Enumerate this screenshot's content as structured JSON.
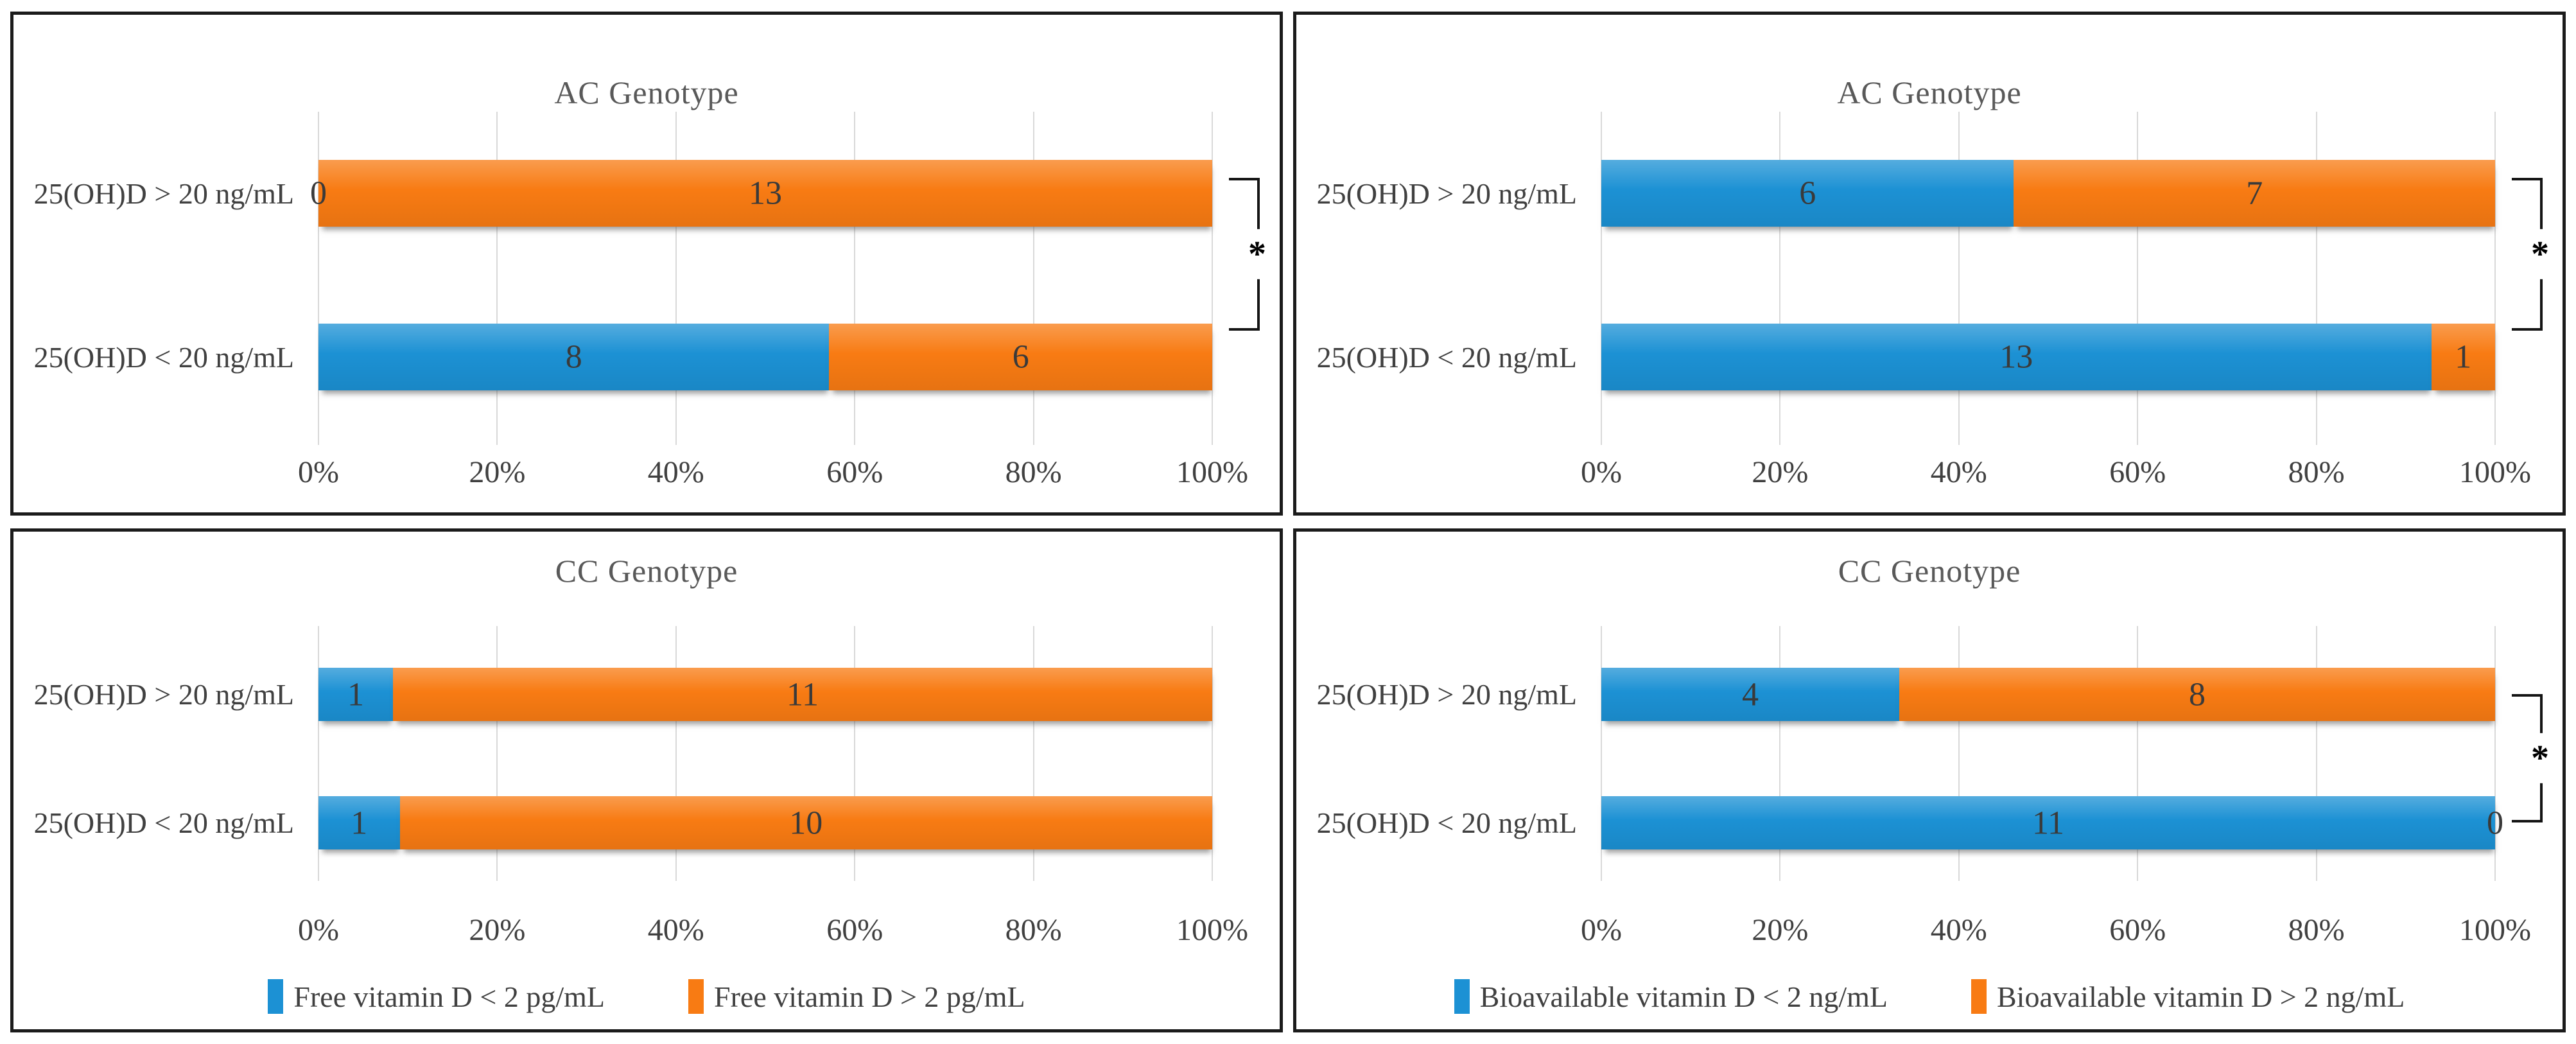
{
  "styles": {
    "blue": "#1c91d4",
    "orange": "#f87b13",
    "grid_color": "#d9d9d9",
    "title_color": "#595959",
    "label_color": "#404040",
    "value_label_color": "#3a3a3a",
    "panel_border_color": "#1b1b1b",
    "bracket_color": "#141414"
  },
  "chart_data": [
    {
      "type": "bar",
      "orientation": "horizontal",
      "stacked": true,
      "title": "AC Genotype",
      "categories": [
        "25(OH)D > 20 ng/mL",
        "25(OH)D < 20 ng/mL"
      ],
      "series": [
        {
          "name": "Free vitamin D < 2 pg/mL",
          "color": "#1c91d4",
          "values": [
            0,
            8
          ]
        },
        {
          "name": "Free vitamin D > 2 pg/mL",
          "color": "#f87b13",
          "values": [
            13,
            6
          ]
        }
      ],
      "x_ticks": [
        "0%",
        "20%",
        "40%",
        "60%",
        "80%",
        "100%"
      ],
      "xlim": [
        0,
        100
      ],
      "x_unit": "percent of row total",
      "value_labels": "counts",
      "significance": "*",
      "legend_shown": false
    },
    {
      "type": "bar",
      "orientation": "horizontal",
      "stacked": true,
      "title": "AC Genotype",
      "categories": [
        "25(OH)D > 20 ng/mL",
        "25(OH)D < 20 ng/mL"
      ],
      "series": [
        {
          "name": "Bioavailable vitamin D < 2 ng/mL",
          "color": "#1c91d4",
          "values": [
            6,
            13
          ]
        },
        {
          "name": "Bioavailable vitamin D > 2 ng/mL",
          "color": "#f87b13",
          "values": [
            7,
            1
          ]
        }
      ],
      "x_ticks": [
        "0%",
        "20%",
        "40%",
        "60%",
        "80%",
        "100%"
      ],
      "xlim": [
        0,
        100
      ],
      "x_unit": "percent of row total",
      "value_labels": "counts",
      "significance": "*",
      "legend_shown": false
    },
    {
      "type": "bar",
      "orientation": "horizontal",
      "stacked": true,
      "title": "CC Genotype",
      "categories": [
        "25(OH)D > 20 ng/mL",
        "25(OH)D < 20 ng/mL"
      ],
      "series": [
        {
          "name": "Free vitamin D < 2 pg/mL",
          "color": "#1c91d4",
          "values": [
            1,
            1
          ]
        },
        {
          "name": "Free vitamin D > 2 pg/mL",
          "color": "#f87b13",
          "values": [
            11,
            10
          ]
        }
      ],
      "x_ticks": [
        "0%",
        "20%",
        "40%",
        "60%",
        "80%",
        "100%"
      ],
      "xlim": [
        0,
        100
      ],
      "x_unit": "percent of row total",
      "value_labels": "counts",
      "significance": null,
      "legend_shown": true
    },
    {
      "type": "bar",
      "orientation": "horizontal",
      "stacked": true,
      "title": "CC Genotype",
      "categories": [
        "25(OH)D > 20 ng/mL",
        "25(OH)D < 20 ng/mL"
      ],
      "series": [
        {
          "name": "Bioavailable vitamin D < 2 ng/mL",
          "color": "#1c91d4",
          "values": [
            4,
            11
          ]
        },
        {
          "name": "Bioavailable vitamin D > 2 ng/mL",
          "color": "#f87b13",
          "values": [
            8,
            0
          ]
        }
      ],
      "x_ticks": [
        "0%",
        "20%",
        "40%",
        "60%",
        "80%",
        "100%"
      ],
      "xlim": [
        0,
        100
      ],
      "x_unit": "percent of row total",
      "value_labels": "counts",
      "significance": "*",
      "legend_shown": true
    }
  ]
}
